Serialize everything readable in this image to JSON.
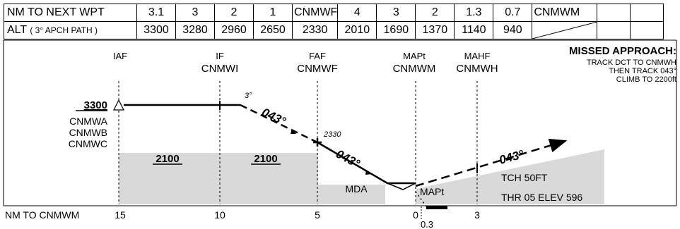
{
  "table": {
    "nm_row_label": "NM TO NEXT WPT",
    "nm_values": [
      "3.1",
      "3",
      "2",
      "1",
      "CNMWF",
      "4",
      "3",
      "2",
      "1.3",
      "0.7",
      "CNMWM"
    ],
    "alt_row_label": "ALT",
    "alt_row_note": "( 3° APCH PATH )",
    "alt_values": [
      "3300",
      "3280",
      "2960",
      "2650",
      "2330",
      "2010",
      "1690",
      "1370",
      "1140",
      "940"
    ]
  },
  "fixes": {
    "iaf_role": "IAF",
    "if_role": "IF",
    "if_name": "CNMWI",
    "faf_role": "FAF",
    "faf_name": "CNMWF",
    "mapt_role": "MAPt",
    "mapt_name": "CNMWM",
    "mahf_role": "MAHF",
    "mahf_name": "CNMWH"
  },
  "missed_approach": {
    "title": "MISSED APPROACH:",
    "line1": "TRACK DCT TO CNMWH",
    "line2": "THEN TRACK 043°",
    "line3": "CLIMB TO 2200ft"
  },
  "profile": {
    "initial_altitude": "3300",
    "initial_waypoints": [
      "CNMWA",
      "CNMWB",
      "CNMWC"
    ],
    "glide_angle": "3°",
    "inbound_track": "043°",
    "faf_altitude": "2330",
    "descent_track": "043°",
    "missed_track": "043°",
    "segment_min_alt_1": "2100",
    "segment_min_alt_2": "2100",
    "mda_label": "MDA",
    "mapt_label": "MAPt",
    "tch": "TCH 50FT",
    "threshold": "THR 05 ELEV 596"
  },
  "distance_scale": {
    "label": "NM TO CNMWM",
    "ticks": [
      "15",
      "10",
      "5",
      "0",
      "3"
    ],
    "sub_tick": "0.3"
  }
}
